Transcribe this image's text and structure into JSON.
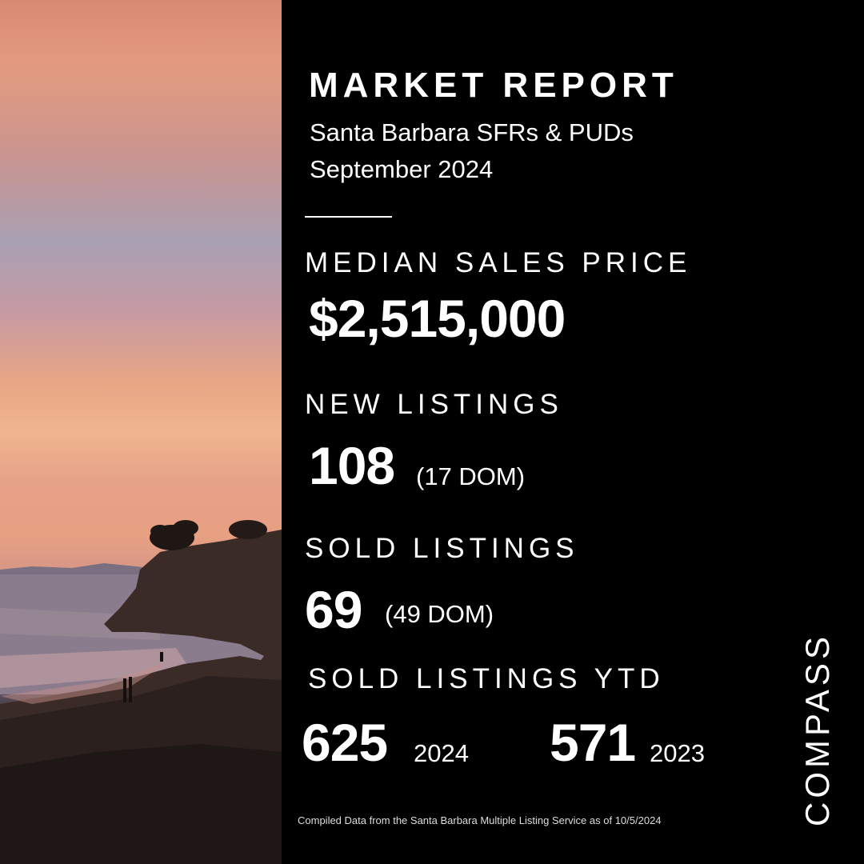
{
  "header": {
    "title": "MARKET REPORT",
    "subtitle_line1": "Santa Barbara SFRs & PUDs",
    "subtitle_line2": "September 2024"
  },
  "median_sales_price": {
    "label": "MEDIAN SALES PRICE",
    "value": "$2,515,000"
  },
  "new_listings": {
    "label": "NEW LISTINGS",
    "value": "108",
    "dom": "(17 DOM)"
  },
  "sold_listings": {
    "label": "SOLD LISTINGS",
    "value": "69",
    "dom": "(49 DOM)"
  },
  "sold_listings_ytd": {
    "label": "SOLD LISTINGS YTD",
    "current_value": "625",
    "current_year": "2024",
    "prior_value": "571",
    "prior_year": "2023"
  },
  "footer": {
    "source_note": "Compiled Data from the Santa Barbara Multiple Listing Service as of 10/5/2024"
  },
  "brand": {
    "name": "COMPASS"
  },
  "colors": {
    "background": "#000000",
    "text": "#ffffff"
  }
}
